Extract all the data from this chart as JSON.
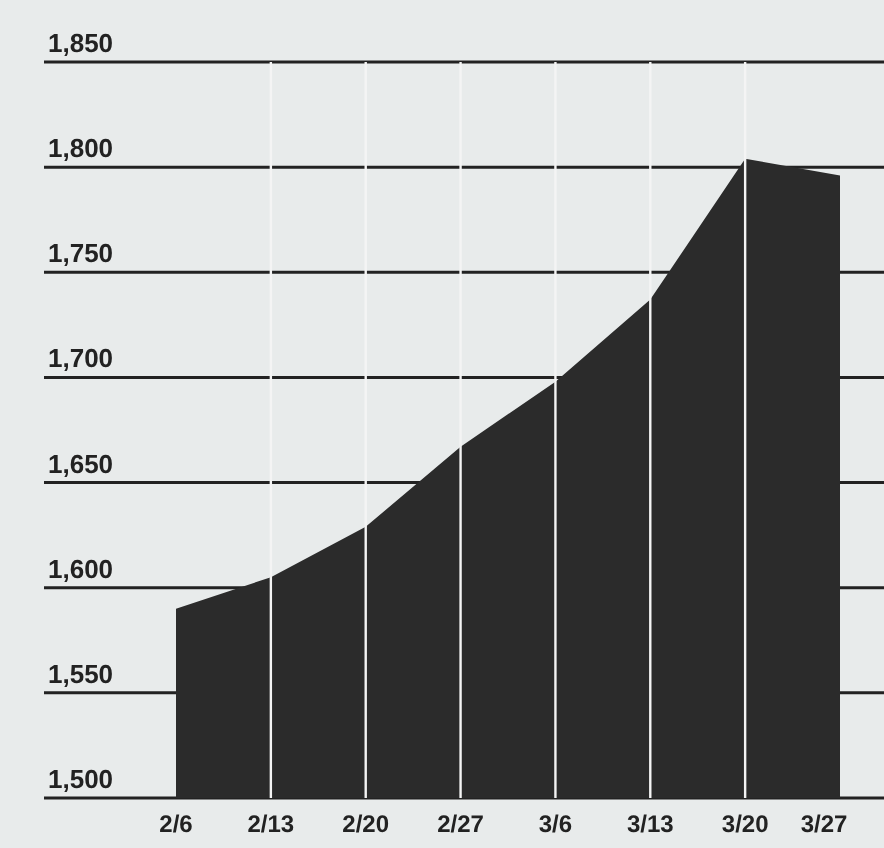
{
  "chart_data": {
    "type": "area",
    "categories": [
      "2/6",
      "2/13",
      "2/20",
      "2/27",
      "3/6",
      "3/13",
      "3/20",
      "3/27"
    ],
    "values": [
      1590,
      1605,
      1629,
      1667,
      1698,
      1737,
      1804,
      1796
    ],
    "color": "#2b2b2b",
    "ylim": [
      1500,
      1850
    ],
    "yticks": [
      {
        "value": 1500,
        "label": "1,500"
      },
      {
        "value": 1550,
        "label": "1,550"
      },
      {
        "value": 1600,
        "label": "1,600"
      },
      {
        "value": 1650,
        "label": "1,650"
      },
      {
        "value": 1700,
        "label": "1,700"
      },
      {
        "value": 1750,
        "label": "1,750"
      },
      {
        "value": 1800,
        "label": "1,800"
      },
      {
        "value": 1850,
        "label": "1,850"
      }
    ],
    "grid": true
  }
}
